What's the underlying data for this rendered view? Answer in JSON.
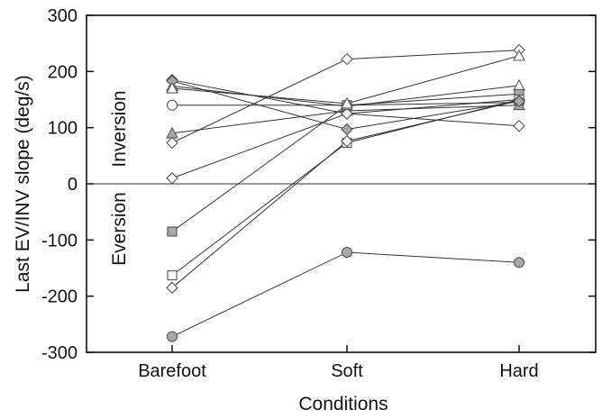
{
  "chart_data": {
    "type": "line",
    "title": "",
    "xlabel": "Conditions",
    "ylabel": "Last EV/INV slope (deg/s)",
    "categories": [
      "Barefoot",
      "Soft",
      "Hard"
    ],
    "ylim": [
      -300,
      300
    ],
    "yticks": [
      300,
      200,
      100,
      0,
      -100,
      -200,
      -300
    ],
    "ytick_labels": [
      "300",
      "200",
      "100",
      "0",
      "-100",
      "-200",
      "-300"
    ],
    "grid": false,
    "reference_line": 0,
    "region_labels": {
      "upper": "Inversion",
      "lower": "Eversion"
    },
    "series": [
      {
        "marker": "diamond",
        "fill": "#a8a8a8",
        "values": [
          185,
          125,
          150
        ]
      },
      {
        "marker": "triangle",
        "fill": "#ffffff",
        "values": [
          174,
          138,
          175
        ]
      },
      {
        "marker": "circle",
        "fill": "#ffffff",
        "values": [
          140,
          140,
          145
        ]
      },
      {
        "marker": "triangle",
        "fill": "#a8a8a8",
        "values": [
          90,
          130,
          140
        ]
      },
      {
        "marker": "diamond",
        "fill": "#ffffff",
        "values": [
          73,
          222,
          238
        ]
      },
      {
        "marker": "diamond",
        "fill": "#ffffff",
        "values": [
          10,
          125,
          103
        ]
      },
      {
        "marker": "square",
        "fill": "#a8a8a8",
        "values": [
          -85,
          140,
          160
        ]
      },
      {
        "marker": "square",
        "fill": "#ffffff",
        "values": [
          -163,
          73,
          150
        ]
      },
      {
        "marker": "diamond",
        "fill": "#ffffff",
        "values": [
          -185,
          76,
          148
        ]
      },
      {
        "marker": "circle",
        "fill": "#a8a8a8",
        "values": [
          -272,
          -122,
          -140
        ]
      },
      {
        "marker": "diamond",
        "fill": "#a8a8a8",
        "values": [
          183,
          97,
          147
        ]
      },
      {
        "marker": "triangle",
        "fill": "#ffffff",
        "values": [
          170,
          143,
          228
        ]
      }
    ]
  }
}
